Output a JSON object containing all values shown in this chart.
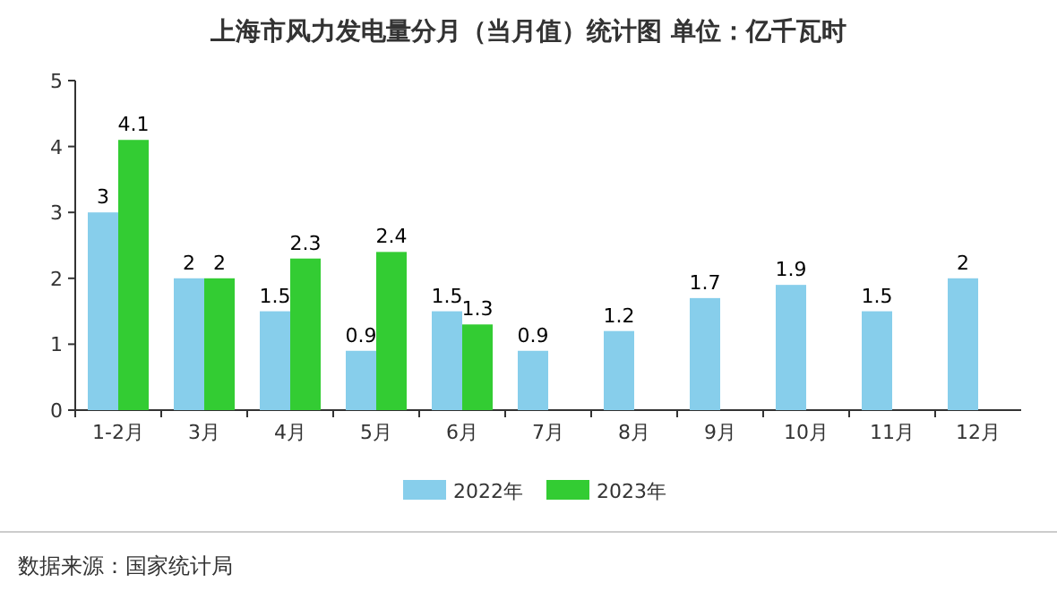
{
  "chart_data": {
    "type": "bar",
    "title": "上海市风力发电量分月（当月值）统计图 单位：亿千瓦时",
    "categories": [
      "1-2月",
      "3月",
      "4月",
      "5月",
      "6月",
      "7月",
      "8月",
      "9月",
      "10月",
      "11月",
      "12月"
    ],
    "series": [
      {
        "name": "2022年",
        "color": "#87ceeb",
        "values": [
          3,
          2,
          1.5,
          0.9,
          1.5,
          0.9,
          1.2,
          1.7,
          1.9,
          1.5,
          2
        ]
      },
      {
        "name": "2023年",
        "color": "#33cc33",
        "values": [
          4.1,
          2,
          2.3,
          2.4,
          1.3,
          null,
          null,
          null,
          null,
          null,
          null
        ]
      }
    ],
    "ylim": [
      0,
      5
    ],
    "yticks": [
      0,
      1,
      2,
      3,
      4,
      5
    ],
    "data_labels": true,
    "legend": "bottom",
    "annotations": [
      "数据来源：国家统计局"
    ]
  }
}
